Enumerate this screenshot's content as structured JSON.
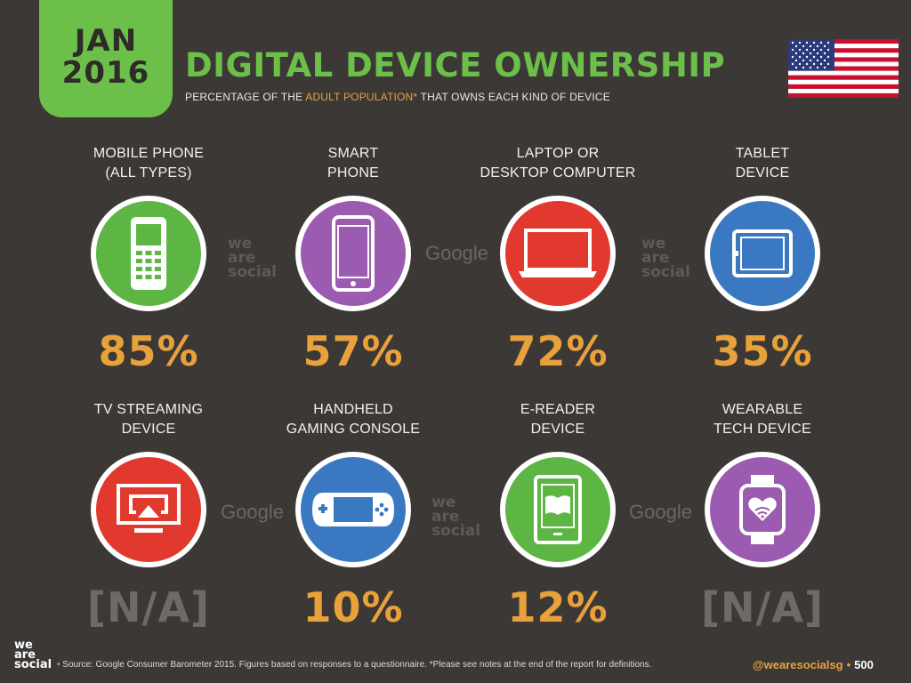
{
  "date_badge": {
    "month": "JAN",
    "year": "2016"
  },
  "title": "DIGITAL DEVICE OWNERSHIP",
  "subtitle": {
    "before": "PERCENTAGE OF THE ",
    "highlight": "ADULT POPULATION*",
    "after": " THAT OWNS EACH KIND OF DEVICE"
  },
  "flag": "united-states-flag",
  "devices": [
    {
      "label_line1": "MOBILE PHONE",
      "label_line2": "(ALL TYPES)",
      "value": "85%",
      "color": "#5db544",
      "icon": "mobile-phone-icon"
    },
    {
      "label_line1": "SMART",
      "label_line2": "PHONE",
      "value": "57%",
      "color": "#9a5bb1",
      "icon": "smartphone-icon"
    },
    {
      "label_line1": "LAPTOP OR",
      "label_line2": "DESKTOP COMPUTER",
      "value": "72%",
      "color": "#e1392e",
      "icon": "laptop-icon"
    },
    {
      "label_line1": "TABLET",
      "label_line2": "DEVICE",
      "value": "35%",
      "color": "#3a78c1",
      "icon": "tablet-icon"
    },
    {
      "label_line1": "TV STREAMING",
      "label_line2": "DEVICE",
      "value": "[N/A]",
      "color": "#e1392e",
      "icon": "tv-streaming-icon"
    },
    {
      "label_line1": "HANDHELD",
      "label_line2": "GAMING CONSOLE",
      "value": "10%",
      "color": "#3a78c1",
      "icon": "gaming-console-icon"
    },
    {
      "label_line1": "E-READER",
      "label_line2": "DEVICE",
      "value": "12%",
      "color": "#5db544",
      "icon": "ereader-icon"
    },
    {
      "label_line1": "WEARABLE",
      "label_line2": "TECH DEVICE",
      "value": "[N/A]",
      "color": "#9a5bb1",
      "icon": "wearable-icon"
    }
  ],
  "watermarks": {
    "social": [
      "we",
      "are",
      "social"
    ],
    "google": "Google"
  },
  "footer": {
    "logo": [
      "we",
      "are",
      "social"
    ],
    "source": "Source: Google Consumer Barometer 2015. Figures based on responses to a questionnaire. *Please see notes at the end of the report for definitions.",
    "handle": "@wearesocialsg",
    "page": "500"
  }
}
